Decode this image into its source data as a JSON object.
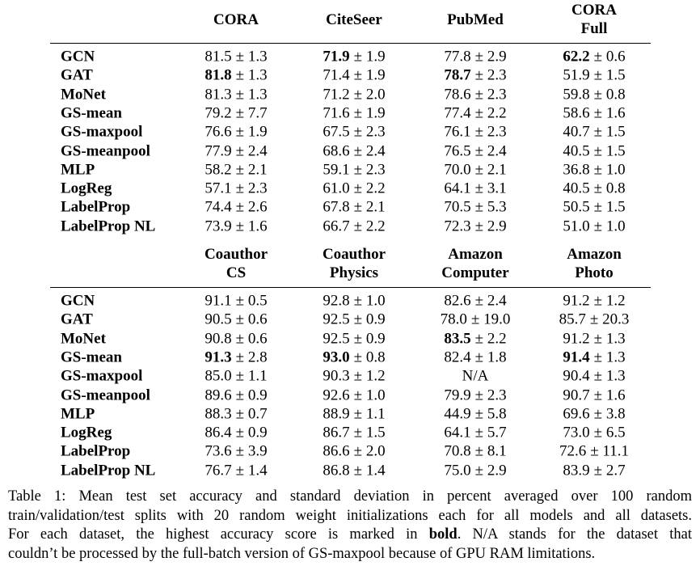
{
  "tables": [
    {
      "columns": [
        [
          "CORA"
        ],
        [
          "CiteSeer"
        ],
        [
          "PubMed"
        ],
        [
          "CORA",
          "Full"
        ]
      ],
      "rows": [
        {
          "model": "GCN",
          "cells": [
            [
              "81.5",
              "± 1.3"
            ],
            [
              "71.9",
              "± 1.9"
            ],
            [
              "77.8",
              "± 2.9"
            ],
            [
              "62.2",
              "± 0.6"
            ]
          ],
          "bold": [
            1,
            3
          ]
        },
        {
          "model": "GAT",
          "cells": [
            [
              "81.8",
              "± 1.3"
            ],
            [
              "71.4",
              "± 1.9"
            ],
            [
              "78.7",
              "± 2.3"
            ],
            [
              "51.9",
              "± 1.5"
            ]
          ],
          "bold": [
            0,
            2
          ]
        },
        {
          "model": "MoNet",
          "cells": [
            [
              "81.3",
              "± 1.3"
            ],
            [
              "71.2",
              "± 2.0"
            ],
            [
              "78.6",
              "± 2.3"
            ],
            [
              "59.8",
              "± 0.8"
            ]
          ]
        },
        {
          "model": "GS-mean",
          "cells": [
            [
              "79.2",
              "± 7.7"
            ],
            [
              "71.6",
              "± 1.9"
            ],
            [
              "77.4",
              "± 2.2"
            ],
            [
              "58.6",
              "± 1.6"
            ]
          ]
        },
        {
          "model": "GS-maxpool",
          "cells": [
            [
              "76.6",
              "± 1.9"
            ],
            [
              "67.5",
              "± 2.3"
            ],
            [
              "76.1",
              "± 2.3"
            ],
            [
              "40.7",
              "± 1.5"
            ]
          ]
        },
        {
          "model": "GS-meanpool",
          "cells": [
            [
              "77.9",
              "± 2.4"
            ],
            [
              "68.6",
              "± 2.4"
            ],
            [
              "76.5",
              "± 2.4"
            ],
            [
              "40.5",
              "± 1.5"
            ]
          ]
        },
        {
          "model": "MLP",
          "cells": [
            [
              "58.2",
              "± 2.1"
            ],
            [
              "59.1",
              "± 2.3"
            ],
            [
              "70.0",
              "± 2.1"
            ],
            [
              "36.8",
              "± 1.0"
            ]
          ]
        },
        {
          "model": "LogReg",
          "cells": [
            [
              "57.1",
              "± 2.3"
            ],
            [
              "61.0",
              "± 2.2"
            ],
            [
              "64.1",
              "± 3.1"
            ],
            [
              "40.5",
              "± 0.8"
            ]
          ]
        },
        {
          "model": "LabelProp",
          "cells": [
            [
              "74.4",
              "± 2.6"
            ],
            [
              "67.8",
              "± 2.1"
            ],
            [
              "70.5",
              "± 5.3"
            ],
            [
              "50.5",
              "± 1.5"
            ]
          ]
        },
        {
          "model": "LabelProp NL",
          "cells": [
            [
              "73.9",
              "± 1.6"
            ],
            [
              "66.7",
              "± 2.2"
            ],
            [
              "72.3",
              "± 2.9"
            ],
            [
              "51.0",
              "± 1.0"
            ]
          ]
        }
      ]
    },
    {
      "columns": [
        [
          "Coauthor",
          "CS"
        ],
        [
          "Coauthor",
          "Physics"
        ],
        [
          "Amazon",
          "Computer"
        ],
        [
          "Amazon",
          "Photo"
        ]
      ],
      "rows": [
        {
          "model": "GCN",
          "cells": [
            [
              "91.1",
              "± 0.5"
            ],
            [
              "92.8",
              "± 1.0"
            ],
            [
              "82.6",
              "± 2.4"
            ],
            [
              "91.2",
              "± 1.2"
            ]
          ]
        },
        {
          "model": "GAT",
          "cells": [
            [
              "90.5",
              "± 0.6"
            ],
            [
              "92.5",
              "± 0.9"
            ],
            [
              "78.0",
              "± 19.0"
            ],
            [
              "85.7",
              "± 20.3"
            ]
          ]
        },
        {
          "model": "MoNet",
          "cells": [
            [
              "90.8",
              "± 0.6"
            ],
            [
              "92.5",
              "± 0.9"
            ],
            [
              "83.5",
              "± 2.2"
            ],
            [
              "91.2",
              "± 1.3"
            ]
          ],
          "bold": [
            2
          ]
        },
        {
          "model": "GS-mean",
          "cells": [
            [
              "91.3",
              "± 2.8"
            ],
            [
              "93.0",
              "± 0.8"
            ],
            [
              "82.4",
              "± 1.8"
            ],
            [
              "91.4",
              "± 1.3"
            ]
          ],
          "bold": [
            0,
            1,
            3
          ]
        },
        {
          "model": "GS-maxpool",
          "cells": [
            [
              "85.0",
              "± 1.1"
            ],
            [
              "90.3",
              "± 1.2"
            ],
            [
              "N/A"
            ],
            [
              "90.4",
              "± 1.3"
            ]
          ]
        },
        {
          "model": "GS-meanpool",
          "cells": [
            [
              "89.6",
              "± 0.9"
            ],
            [
              "92.6",
              "± 1.0"
            ],
            [
              "79.9",
              "± 2.3"
            ],
            [
              "90.7",
              "± 1.6"
            ]
          ]
        },
        {
          "model": "MLP",
          "cells": [
            [
              "88.3",
              "± 0.7"
            ],
            [
              "88.9",
              "± 1.1"
            ],
            [
              "44.9",
              "± 5.8"
            ],
            [
              "69.6",
              "± 3.8"
            ]
          ]
        },
        {
          "model": "LogReg",
          "cells": [
            [
              "86.4",
              "± 0.9"
            ],
            [
              "86.7",
              "± 1.5"
            ],
            [
              "64.1",
              "± 5.7"
            ],
            [
              "73.0",
              "± 6.5"
            ]
          ]
        },
        {
          "model": "LabelProp",
          "cells": [
            [
              "73.6",
              "± 3.9"
            ],
            [
              "86.6",
              "± 2.0"
            ],
            [
              "70.8",
              "± 8.1"
            ],
            [
              "72.6",
              "± 11.1"
            ]
          ]
        },
        {
          "model": "LabelProp NL",
          "cells": [
            [
              "76.7",
              "± 1.4"
            ],
            [
              "86.8",
              "± 1.4"
            ],
            [
              "75.0",
              "± 2.9"
            ],
            [
              "83.9",
              "± 2.7"
            ]
          ]
        }
      ]
    }
  ],
  "caption": [
    [
      {
        "text": "Table 1:  Mean test set accuracy and standard deviation in percent averaged over 100 random"
      }
    ],
    [
      {
        "text": "train/validation/test splits with 20 random weight initializations each for all models and all datasets."
      }
    ],
    [
      {
        "text": "For each dataset, the highest accuracy score is marked in "
      },
      {
        "text": "bold",
        "bold": true
      },
      {
        "text": ".  N/A stands for the dataset that"
      }
    ],
    [
      {
        "text": "couldn’t be processed by the full-batch version of GS-maxpool because of GPU RAM limitations."
      }
    ]
  ]
}
